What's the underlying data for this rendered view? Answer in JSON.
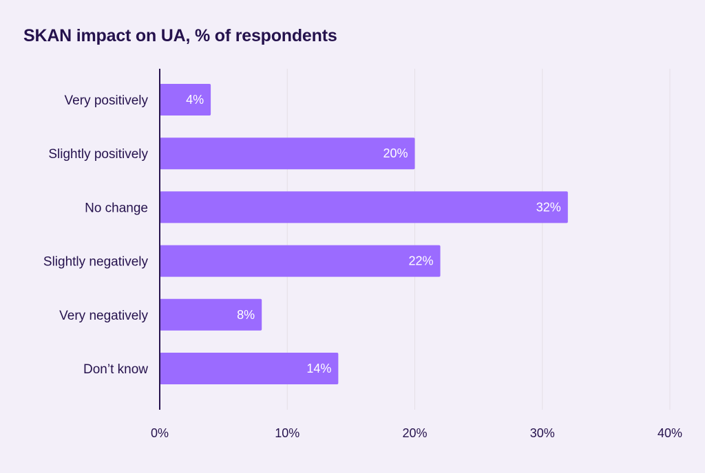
{
  "chart_data": {
    "type": "bar",
    "orientation": "horizontal",
    "title": "SKAN impact on UA, % of respondents",
    "xlabel": "",
    "ylabel": "",
    "categories": [
      "Very positively",
      "Slightly positively",
      "No change",
      "Slightly negatively",
      "Very negatively",
      "Don’t know"
    ],
    "values": [
      4,
      20,
      32,
      22,
      8,
      14
    ],
    "value_labels": [
      "4%",
      "20%",
      "32%",
      "22%",
      "8%",
      "14%"
    ],
    "xlim": [
      0,
      40
    ],
    "xticks": [
      0,
      10,
      20,
      30,
      40
    ],
    "xtick_labels": [
      "0%",
      "10%",
      "20%",
      "30%",
      "40%"
    ],
    "grid": true,
    "legend": "none",
    "colors": {
      "bar": "#9b6bff",
      "axis": "#25124d",
      "grid": "#e4dfe6",
      "text": "#25124d",
      "value_text": "#ffffff",
      "background": "#f3eff9"
    }
  }
}
